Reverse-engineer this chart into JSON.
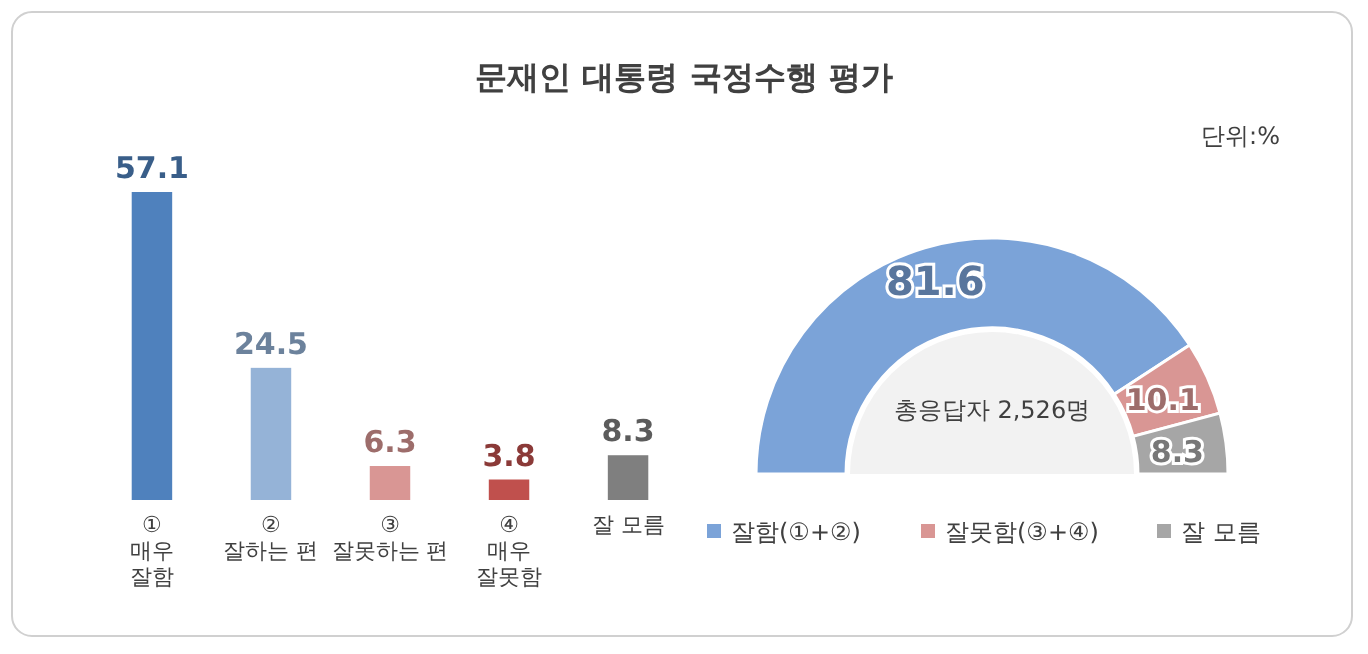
{
  "chart_data": [
    {
      "type": "bar",
      "title": "문재인 대통령 국정수행 평가",
      "categories": [
        "①\n매우\n잘함",
        "②\n잘하는 편",
        "③\n잘못하는 편",
        "④\n매우\n잘못함",
        "잘 모름"
      ],
      "values": [
        57.1,
        24.5,
        6.3,
        3.8,
        8.3
      ],
      "colors": [
        "#4f81bd",
        "#95b3d7",
        "#d99694",
        "#c0504d",
        "#7f7f7f"
      ],
      "data_labels": true
    },
    {
      "type": "donut",
      "categories": [
        "잘함(①+②)",
        "잘못함(③+④)",
        "잘 모름"
      ],
      "values": [
        81.6,
        10.1,
        8.3
      ],
      "colors": [
        "#7ba3d8",
        "#d99694",
        "#a6a6a6"
      ],
      "data_labels": true,
      "legend": "bottom",
      "annotations": [
        "총응답자 2,526명",
        "단위:%"
      ]
    }
  ]
}
